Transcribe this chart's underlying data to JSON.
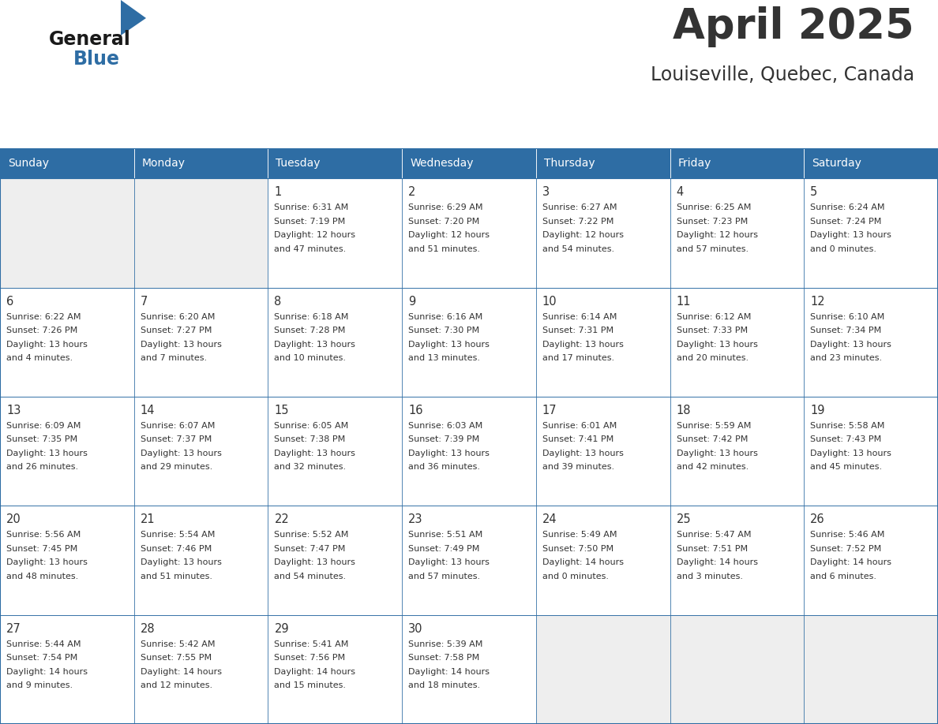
{
  "title": "April 2025",
  "location": "Louiseville, Quebec, Canada",
  "header_bg": "#2E6DA4",
  "header_text_color": "#FFFFFF",
  "cell_bg_empty": "#EEEEEE",
  "cell_bg_filled": "#FFFFFF",
  "border_color": "#2E6DA4",
  "text_color": "#333333",
  "logo_text_color": "#1a1a1a",
  "logo_blue_color": "#2E6DA4",
  "days_of_week": [
    "Sunday",
    "Monday",
    "Tuesday",
    "Wednesday",
    "Thursday",
    "Friday",
    "Saturday"
  ],
  "weeks": [
    [
      {
        "day": "",
        "info": ""
      },
      {
        "day": "",
        "info": ""
      },
      {
        "day": "1",
        "info": "Sunrise: 6:31 AM\nSunset: 7:19 PM\nDaylight: 12 hours\nand 47 minutes."
      },
      {
        "day": "2",
        "info": "Sunrise: 6:29 AM\nSunset: 7:20 PM\nDaylight: 12 hours\nand 51 minutes."
      },
      {
        "day": "3",
        "info": "Sunrise: 6:27 AM\nSunset: 7:22 PM\nDaylight: 12 hours\nand 54 minutes."
      },
      {
        "day": "4",
        "info": "Sunrise: 6:25 AM\nSunset: 7:23 PM\nDaylight: 12 hours\nand 57 minutes."
      },
      {
        "day": "5",
        "info": "Sunrise: 6:24 AM\nSunset: 7:24 PM\nDaylight: 13 hours\nand 0 minutes."
      }
    ],
    [
      {
        "day": "6",
        "info": "Sunrise: 6:22 AM\nSunset: 7:26 PM\nDaylight: 13 hours\nand 4 minutes."
      },
      {
        "day": "7",
        "info": "Sunrise: 6:20 AM\nSunset: 7:27 PM\nDaylight: 13 hours\nand 7 minutes."
      },
      {
        "day": "8",
        "info": "Sunrise: 6:18 AM\nSunset: 7:28 PM\nDaylight: 13 hours\nand 10 minutes."
      },
      {
        "day": "9",
        "info": "Sunrise: 6:16 AM\nSunset: 7:30 PM\nDaylight: 13 hours\nand 13 minutes."
      },
      {
        "day": "10",
        "info": "Sunrise: 6:14 AM\nSunset: 7:31 PM\nDaylight: 13 hours\nand 17 minutes."
      },
      {
        "day": "11",
        "info": "Sunrise: 6:12 AM\nSunset: 7:33 PM\nDaylight: 13 hours\nand 20 minutes."
      },
      {
        "day": "12",
        "info": "Sunrise: 6:10 AM\nSunset: 7:34 PM\nDaylight: 13 hours\nand 23 minutes."
      }
    ],
    [
      {
        "day": "13",
        "info": "Sunrise: 6:09 AM\nSunset: 7:35 PM\nDaylight: 13 hours\nand 26 minutes."
      },
      {
        "day": "14",
        "info": "Sunrise: 6:07 AM\nSunset: 7:37 PM\nDaylight: 13 hours\nand 29 minutes."
      },
      {
        "day": "15",
        "info": "Sunrise: 6:05 AM\nSunset: 7:38 PM\nDaylight: 13 hours\nand 32 minutes."
      },
      {
        "day": "16",
        "info": "Sunrise: 6:03 AM\nSunset: 7:39 PM\nDaylight: 13 hours\nand 36 minutes."
      },
      {
        "day": "17",
        "info": "Sunrise: 6:01 AM\nSunset: 7:41 PM\nDaylight: 13 hours\nand 39 minutes."
      },
      {
        "day": "18",
        "info": "Sunrise: 5:59 AM\nSunset: 7:42 PM\nDaylight: 13 hours\nand 42 minutes."
      },
      {
        "day": "19",
        "info": "Sunrise: 5:58 AM\nSunset: 7:43 PM\nDaylight: 13 hours\nand 45 minutes."
      }
    ],
    [
      {
        "day": "20",
        "info": "Sunrise: 5:56 AM\nSunset: 7:45 PM\nDaylight: 13 hours\nand 48 minutes."
      },
      {
        "day": "21",
        "info": "Sunrise: 5:54 AM\nSunset: 7:46 PM\nDaylight: 13 hours\nand 51 minutes."
      },
      {
        "day": "22",
        "info": "Sunrise: 5:52 AM\nSunset: 7:47 PM\nDaylight: 13 hours\nand 54 minutes."
      },
      {
        "day": "23",
        "info": "Sunrise: 5:51 AM\nSunset: 7:49 PM\nDaylight: 13 hours\nand 57 minutes."
      },
      {
        "day": "24",
        "info": "Sunrise: 5:49 AM\nSunset: 7:50 PM\nDaylight: 14 hours\nand 0 minutes."
      },
      {
        "day": "25",
        "info": "Sunrise: 5:47 AM\nSunset: 7:51 PM\nDaylight: 14 hours\nand 3 minutes."
      },
      {
        "day": "26",
        "info": "Sunrise: 5:46 AM\nSunset: 7:52 PM\nDaylight: 14 hours\nand 6 minutes."
      }
    ],
    [
      {
        "day": "27",
        "info": "Sunrise: 5:44 AM\nSunset: 7:54 PM\nDaylight: 14 hours\nand 9 minutes."
      },
      {
        "day": "28",
        "info": "Sunrise: 5:42 AM\nSunset: 7:55 PM\nDaylight: 14 hours\nand 12 minutes."
      },
      {
        "day": "29",
        "info": "Sunrise: 5:41 AM\nSunset: 7:56 PM\nDaylight: 14 hours\nand 15 minutes."
      },
      {
        "day": "30",
        "info": "Sunrise: 5:39 AM\nSunset: 7:58 PM\nDaylight: 14 hours\nand 18 minutes."
      },
      {
        "day": "",
        "info": ""
      },
      {
        "day": "",
        "info": ""
      },
      {
        "day": "",
        "info": ""
      }
    ]
  ]
}
